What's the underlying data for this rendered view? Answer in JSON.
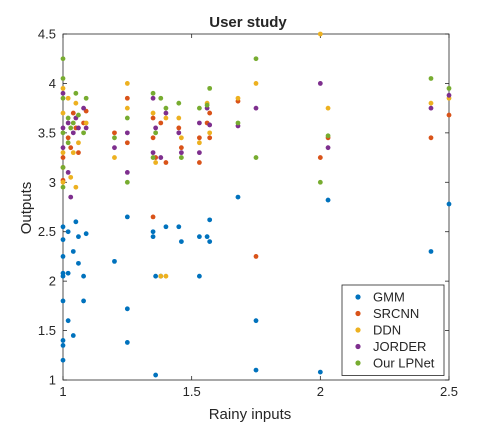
{
  "chart_data": {
    "type": "scatter",
    "title": "User study",
    "xlabel": "Rainy inputs",
    "ylabel": "Outputs",
    "xlim": [
      1,
      2.5
    ],
    "ylim": [
      1,
      4.5
    ],
    "xticks": [
      "1",
      "1.5",
      "2",
      "2.5"
    ],
    "yticks": [
      "1",
      "1.5",
      "2",
      "2.5",
      "3",
      "3.5",
      "4",
      "4.5"
    ],
    "grid": false,
    "legend_position": "bottom-right",
    "series": [
      {
        "name": "GMM",
        "color": "#0072BD",
        "points": [
          [
            1.0,
            2.55
          ],
          [
            1.0,
            2.42
          ],
          [
            1.0,
            2.25
          ],
          [
            1.0,
            2.08
          ],
          [
            1.0,
            2.05
          ],
          [
            1.0,
            1.8
          ],
          [
            1.0,
            1.4
          ],
          [
            1.0,
            1.35
          ],
          [
            1.0,
            1.2
          ],
          [
            1.02,
            2.5
          ],
          [
            1.02,
            2.08
          ],
          [
            1.02,
            1.6
          ],
          [
            1.04,
            2.3
          ],
          [
            1.04,
            1.45
          ],
          [
            1.05,
            2.6
          ],
          [
            1.06,
            2.45
          ],
          [
            1.06,
            2.18
          ],
          [
            1.08,
            2.05
          ],
          [
            1.08,
            1.8
          ],
          [
            1.09,
            2.48
          ],
          [
            1.2,
            2.2
          ],
          [
            1.25,
            2.65
          ],
          [
            1.25,
            1.72
          ],
          [
            1.25,
            1.38
          ],
          [
            1.35,
            2.5
          ],
          [
            1.35,
            2.45
          ],
          [
            1.36,
            2.05
          ],
          [
            1.36,
            1.05
          ],
          [
            1.38,
            2.05
          ],
          [
            1.4,
            2.55
          ],
          [
            1.45,
            2.55
          ],
          [
            1.46,
            2.4
          ],
          [
            1.53,
            2.45
          ],
          [
            1.53,
            2.05
          ],
          [
            1.56,
            2.45
          ],
          [
            1.57,
            2.4
          ],
          [
            1.57,
            2.62
          ],
          [
            1.68,
            2.85
          ],
          [
            1.75,
            1.6
          ],
          [
            1.75,
            1.1
          ],
          [
            2.0,
            1.08
          ],
          [
            2.03,
            2.82
          ],
          [
            2.43,
            2.3
          ],
          [
            2.5,
            2.78
          ]
        ]
      },
      {
        "name": "SRCNN",
        "color": "#D95319",
        "points": [
          [
            1.0,
            3.25
          ],
          [
            1.0,
            3.15
          ],
          [
            1.0,
            3.02
          ],
          [
            1.02,
            3.45
          ],
          [
            1.03,
            3.35
          ],
          [
            1.04,
            3.7
          ],
          [
            1.05,
            3.55
          ],
          [
            1.06,
            3.3
          ],
          [
            1.08,
            3.6
          ],
          [
            1.09,
            3.72
          ],
          [
            1.2,
            3.5
          ],
          [
            1.25,
            3.85
          ],
          [
            1.25,
            3.4
          ],
          [
            1.35,
            3.65
          ],
          [
            1.35,
            3.45
          ],
          [
            1.35,
            2.65
          ],
          [
            1.36,
            3.25
          ],
          [
            1.38,
            3.6
          ],
          [
            1.4,
            3.2
          ],
          [
            1.45,
            3.55
          ],
          [
            1.46,
            3.35
          ],
          [
            1.53,
            3.45
          ],
          [
            1.53,
            3.2
          ],
          [
            1.56,
            3.6
          ],
          [
            1.57,
            3.7
          ],
          [
            1.57,
            3.45
          ],
          [
            1.68,
            3.82
          ],
          [
            1.75,
            2.25
          ],
          [
            2.0,
            3.25
          ],
          [
            2.03,
            3.45
          ],
          [
            2.43,
            3.45
          ],
          [
            2.5,
            3.68
          ]
        ]
      },
      {
        "name": "DDN",
        "color": "#EDB120",
        "points": [
          [
            1.0,
            3.95
          ],
          [
            1.0,
            3.7
          ],
          [
            1.0,
            3.3
          ],
          [
            1.0,
            3.0
          ],
          [
            1.02,
            3.85
          ],
          [
            1.03,
            3.05
          ],
          [
            1.04,
            3.3
          ],
          [
            1.05,
            3.8
          ],
          [
            1.05,
            2.95
          ],
          [
            1.06,
            3.4
          ],
          [
            1.09,
            3.6
          ],
          [
            1.2,
            3.25
          ],
          [
            1.25,
            4.0
          ],
          [
            1.25,
            3.75
          ],
          [
            1.35,
            3.7
          ],
          [
            1.36,
            3.2
          ],
          [
            1.38,
            2.05
          ],
          [
            1.4,
            3.65
          ],
          [
            1.4,
            2.05
          ],
          [
            1.45,
            3.65
          ],
          [
            1.46,
            3.45
          ],
          [
            1.53,
            3.4
          ],
          [
            1.56,
            3.8
          ],
          [
            1.57,
            3.5
          ],
          [
            1.68,
            3.85
          ],
          [
            1.75,
            4.0
          ],
          [
            2.0,
            4.5
          ],
          [
            2.03,
            3.75
          ],
          [
            2.43,
            3.8
          ],
          [
            2.5,
            3.85
          ]
        ]
      },
      {
        "name": "JORDER",
        "color": "#7E2F8E",
        "points": [
          [
            1.0,
            3.9
          ],
          [
            1.0,
            3.55
          ],
          [
            1.0,
            3.35
          ],
          [
            1.02,
            3.6
          ],
          [
            1.02,
            3.1
          ],
          [
            1.03,
            2.85
          ],
          [
            1.04,
            3.5
          ],
          [
            1.05,
            3.65
          ],
          [
            1.06,
            3.55
          ],
          [
            1.08,
            3.75
          ],
          [
            1.09,
            3.55
          ],
          [
            1.2,
            3.35
          ],
          [
            1.25,
            3.1
          ],
          [
            1.25,
            3.5
          ],
          [
            1.35,
            3.85
          ],
          [
            1.35,
            3.3
          ],
          [
            1.36,
            3.55
          ],
          [
            1.38,
            3.25
          ],
          [
            1.4,
            3.7
          ],
          [
            1.45,
            3.5
          ],
          [
            1.46,
            3.3
          ],
          [
            1.53,
            3.6
          ],
          [
            1.53,
            3.3
          ],
          [
            1.56,
            3.75
          ],
          [
            1.57,
            3.58
          ],
          [
            1.68,
            3.57
          ],
          [
            1.75,
            3.75
          ],
          [
            2.0,
            4.0
          ],
          [
            2.03,
            3.35
          ],
          [
            2.43,
            3.75
          ],
          [
            2.5,
            3.88
          ]
        ]
      },
      {
        "name": "Our LPNet",
        "color": "#77AC30",
        "points": [
          [
            1.0,
            4.25
          ],
          [
            1.0,
            4.05
          ],
          [
            1.0,
            3.85
          ],
          [
            1.0,
            3.5
          ],
          [
            1.0,
            3.15
          ],
          [
            1.0,
            2.95
          ],
          [
            1.02,
            3.65
          ],
          [
            1.02,
            3.4
          ],
          [
            1.03,
            3.55
          ],
          [
            1.04,
            3.6
          ],
          [
            1.05,
            3.9
          ],
          [
            1.06,
            3.68
          ],
          [
            1.08,
            3.5
          ],
          [
            1.09,
            3.85
          ],
          [
            1.2,
            3.45
          ],
          [
            1.25,
            3.0
          ],
          [
            1.25,
            3.65
          ],
          [
            1.35,
            3.9
          ],
          [
            1.35,
            3.25
          ],
          [
            1.36,
            3.5
          ],
          [
            1.38,
            3.85
          ],
          [
            1.4,
            3.75
          ],
          [
            1.45,
            3.8
          ],
          [
            1.46,
            3.25
          ],
          [
            1.53,
            3.75
          ],
          [
            1.56,
            3.78
          ],
          [
            1.57,
            3.95
          ],
          [
            1.68,
            3.6
          ],
          [
            1.75,
            4.25
          ],
          [
            1.75,
            3.25
          ],
          [
            2.0,
            3.0
          ],
          [
            2.03,
            3.47
          ],
          [
            2.43,
            4.05
          ],
          [
            2.5,
            3.95
          ]
        ]
      }
    ]
  }
}
